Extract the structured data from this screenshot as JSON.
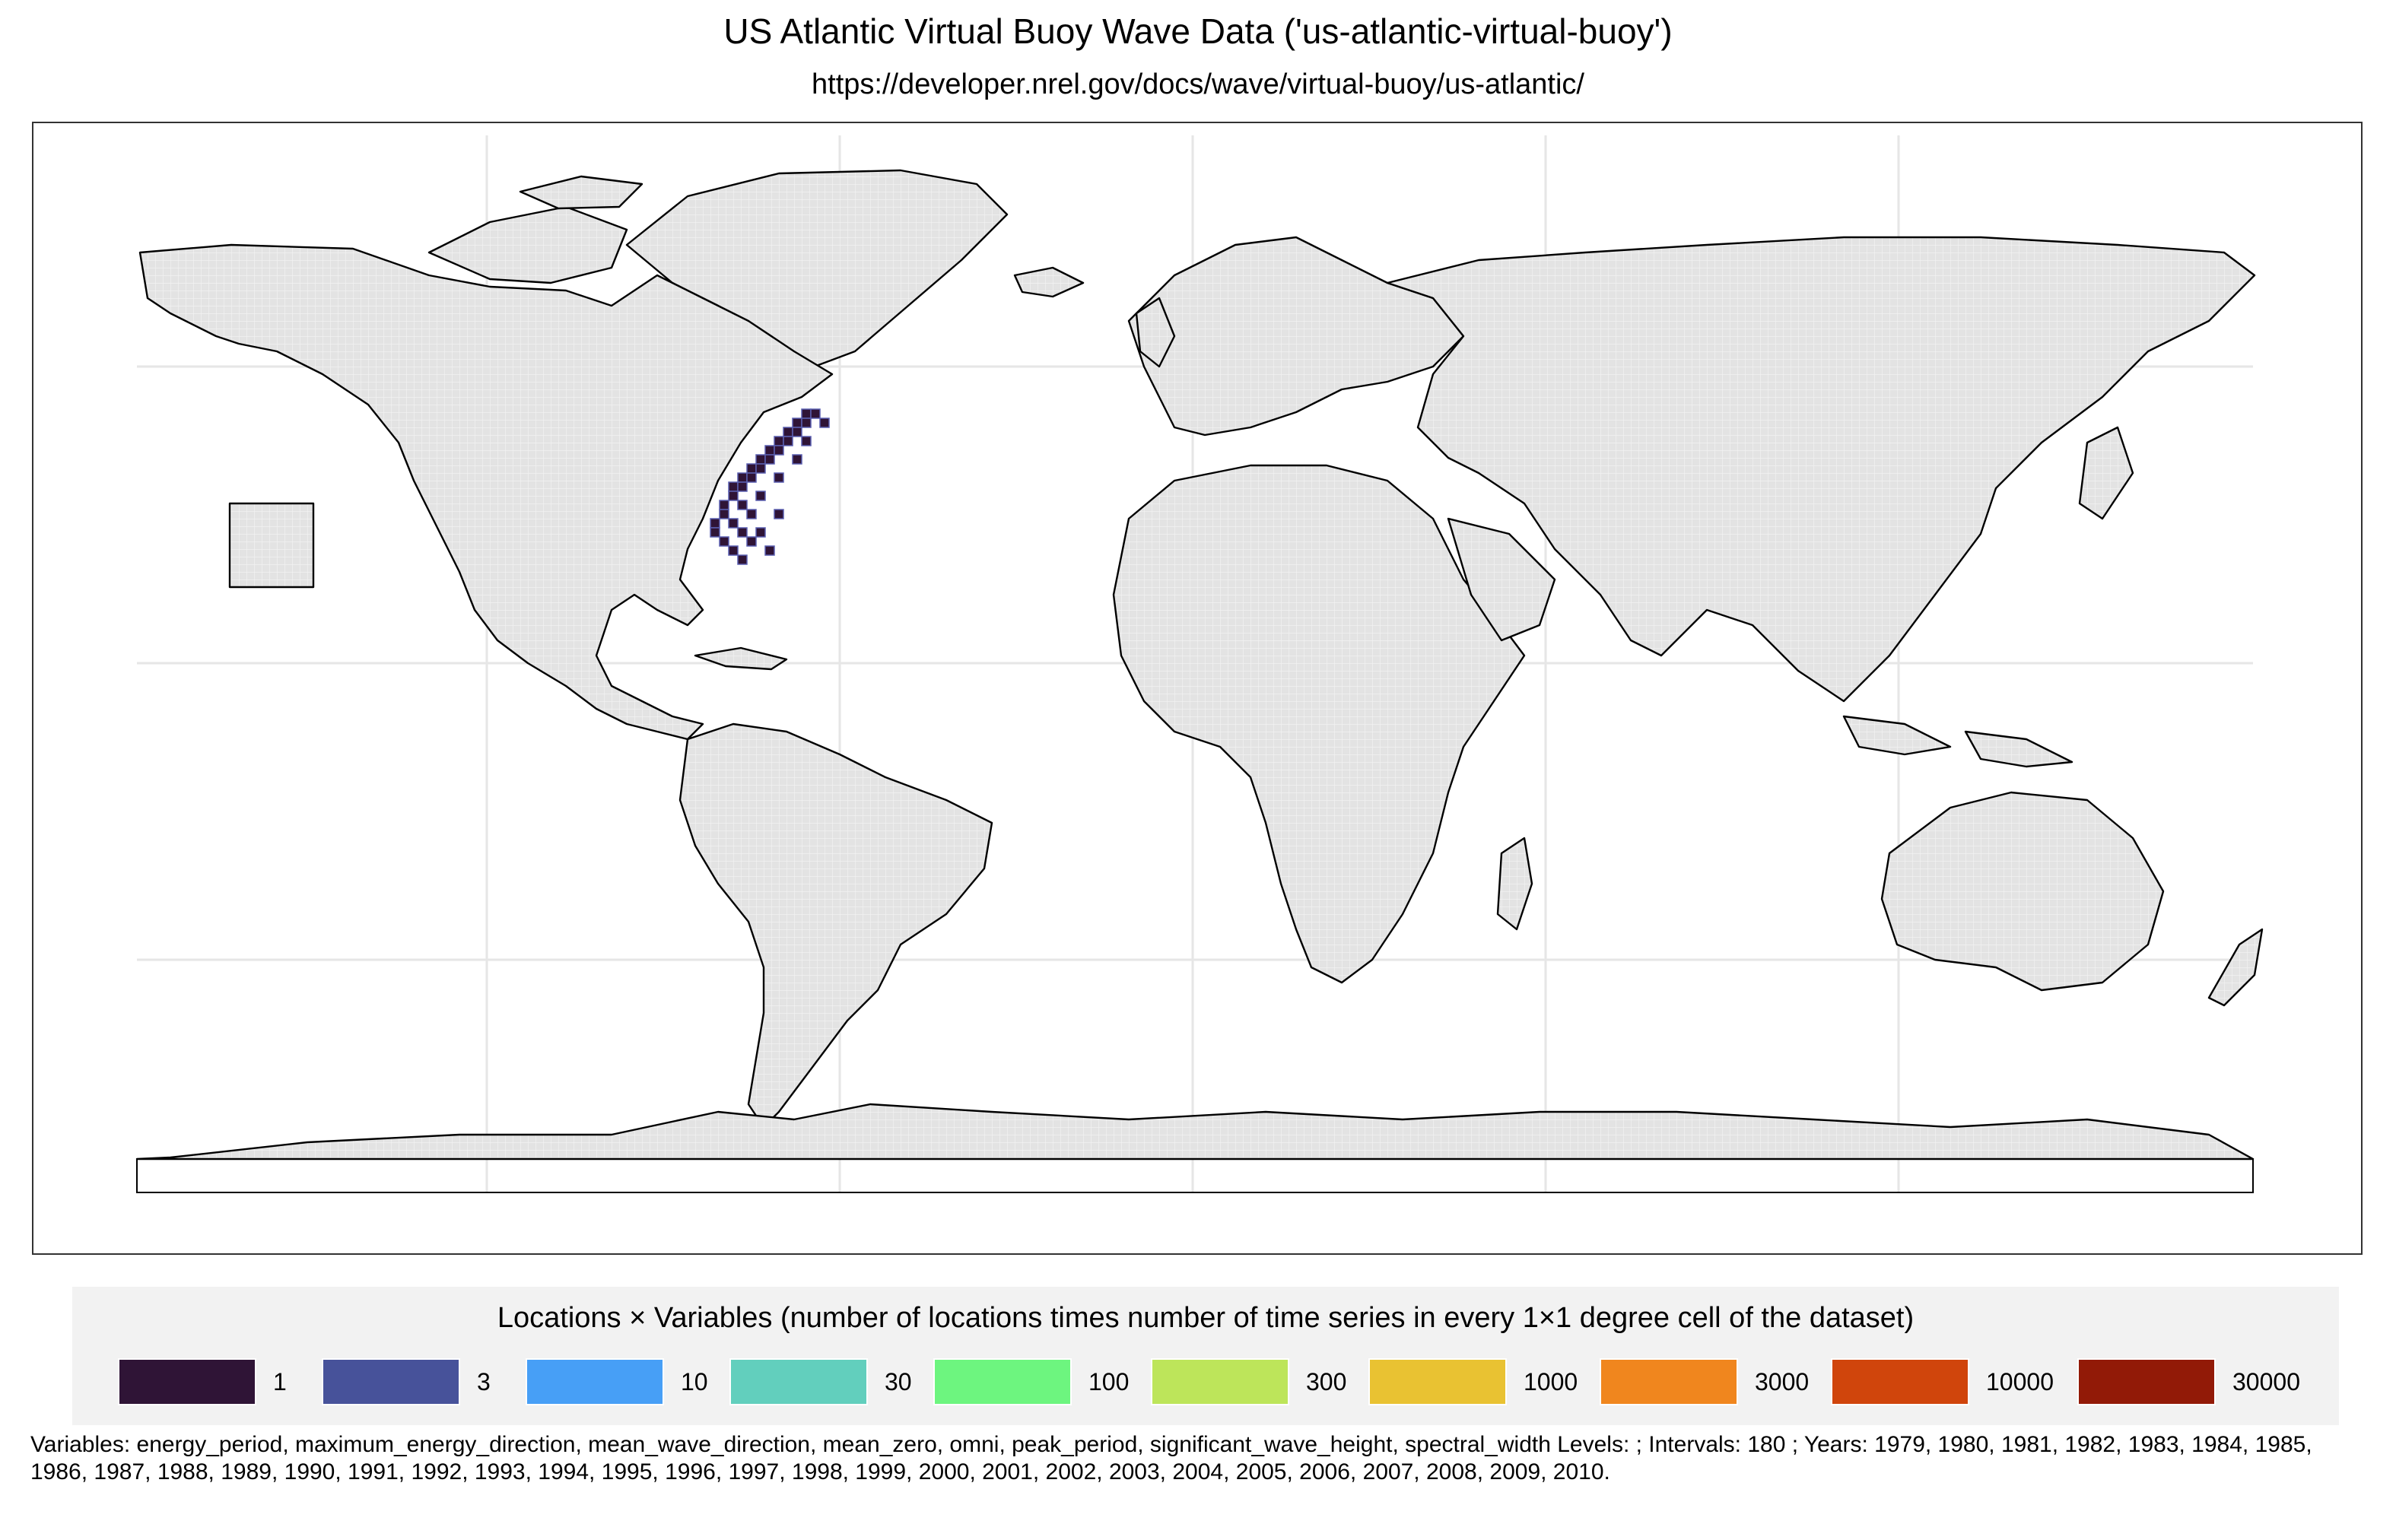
{
  "title": "US Atlantic Virtual Buoy Wave Data ('us-atlantic-virtual-buoy')",
  "subtitle": "https://developer.nrel.gov/docs/wave/virtual-buoy/us-atlantic/",
  "legend": {
    "title": "Locations × Variables (number of locations times number of time series in every 1×1 degree cell of the dataset)",
    "items": [
      {
        "label": "1",
        "color": "#2f1436"
      },
      {
        "label": "3",
        "color": "#47529a"
      },
      {
        "label": "10",
        "color": "#479ff6"
      },
      {
        "label": "30",
        "color": "#62cfbd"
      },
      {
        "label": "100",
        "color": "#6df57f"
      },
      {
        "label": "300",
        "color": "#bde55a"
      },
      {
        "label": "1000",
        "color": "#e9c232"
      },
      {
        "label": "3000",
        "color": "#f0861e"
      },
      {
        "label": "10000",
        "color": "#d0450c"
      },
      {
        "label": "30000",
        "color": "#921a07"
      }
    ]
  },
  "footnote": "Variables: energy_period, maximum_energy_direction, mean_wave_direction, mean_zero, omni, peak_period, significant_wave_height, spectral_width Levels: ; Intervals: 180 ; Years: 1979, 1980, 1981, 1982, 1983, 1984, 1985, 1986, 1987, 1988, 1989, 1990, 1991, 1992, 1993, 1994, 1995, 1996, 1997, 1998, 1999, 2000, 2001, 2002, 2003, 2004, 2005, 2006, 2007, 2008, 2009, 2010.",
  "colors": {
    "land_fill": "#e3e3e3",
    "coast": "#000000",
    "grid": "#e6e6e6",
    "data_cell": "#2f1436"
  }
}
